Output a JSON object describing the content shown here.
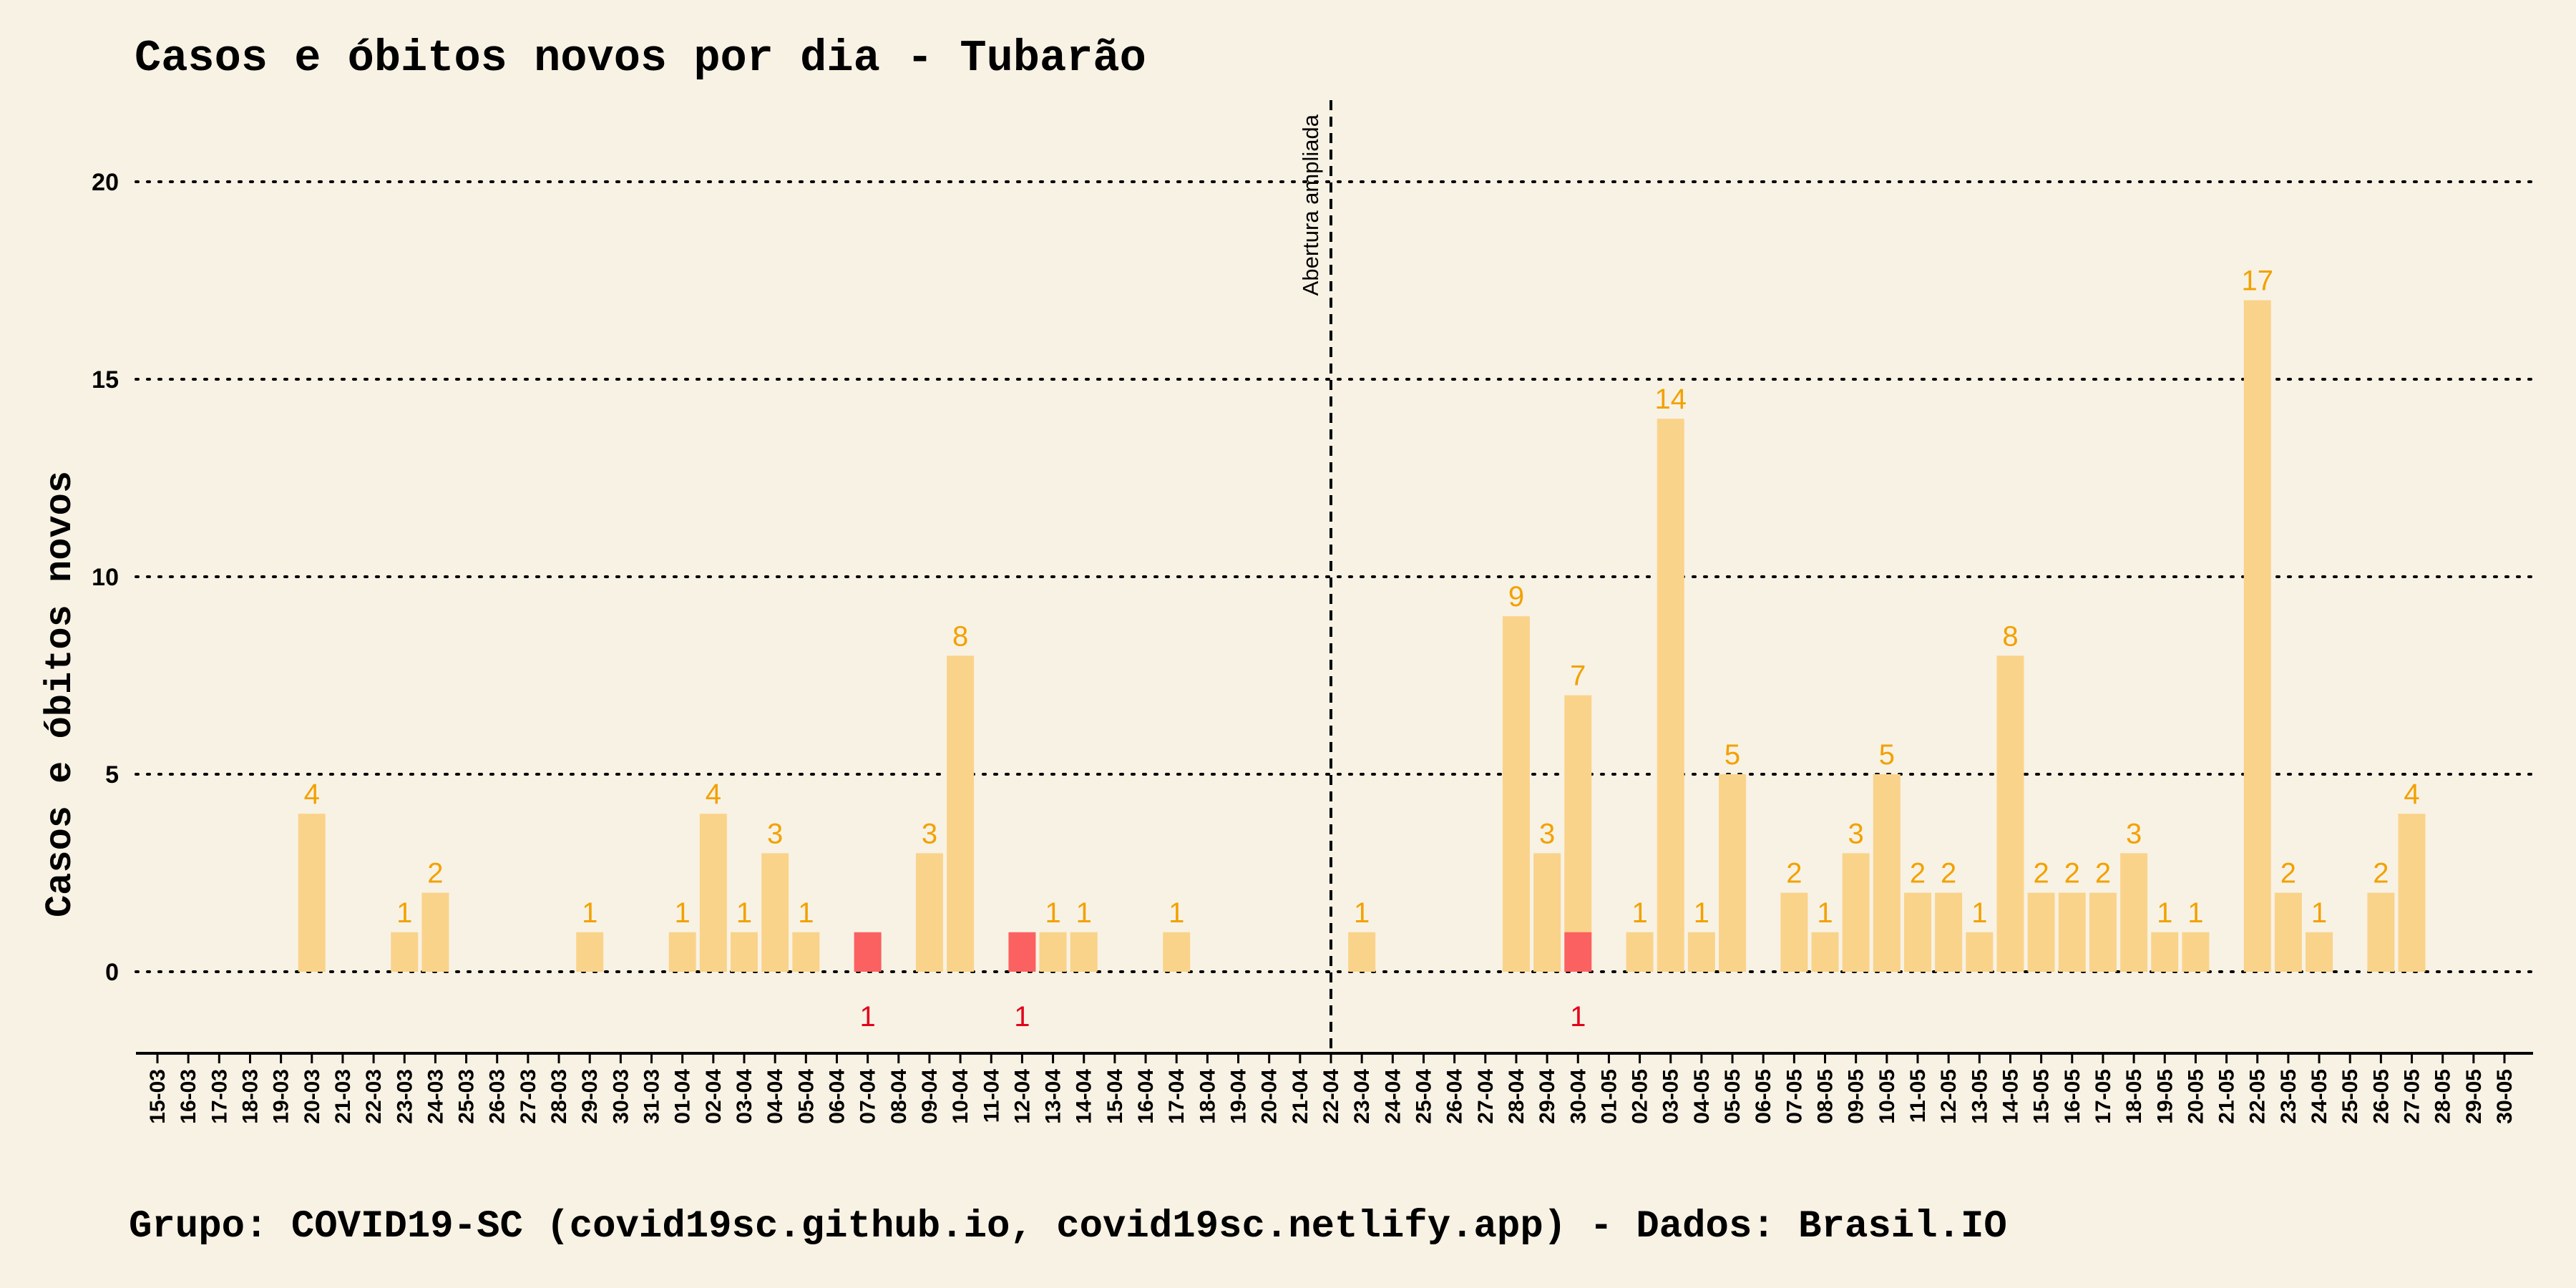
{
  "chart_data": {
    "type": "bar",
    "title": "Casos e óbitos novos por dia -  Tubarão",
    "ylabel": "Casos e óbitos novos",
    "xlabel": "",
    "ylim": [
      -2,
      22
    ],
    "yticks": [
      0,
      5,
      10,
      15,
      20
    ],
    "grid": "horizontal dotted",
    "categories": [
      "15-03",
      "16-03",
      "17-03",
      "18-03",
      "19-03",
      "20-03",
      "21-03",
      "22-03",
      "23-03",
      "24-03",
      "25-03",
      "26-03",
      "27-03",
      "28-03",
      "29-03",
      "30-03",
      "31-03",
      "01-04",
      "02-04",
      "03-04",
      "04-04",
      "05-04",
      "06-04",
      "07-04",
      "08-04",
      "09-04",
      "10-04",
      "11-04",
      "12-04",
      "13-04",
      "14-04",
      "15-04",
      "16-04",
      "17-04",
      "18-04",
      "19-04",
      "20-04",
      "21-04",
      "22-04",
      "23-04",
      "24-04",
      "25-04",
      "26-04",
      "27-04",
      "28-04",
      "29-04",
      "30-04",
      "01-05",
      "02-05",
      "03-05",
      "04-05",
      "05-05",
      "06-05",
      "07-05",
      "08-05",
      "09-05",
      "10-05",
      "11-05",
      "12-05",
      "13-05",
      "14-05",
      "15-05",
      "16-05",
      "17-05",
      "18-05",
      "19-05",
      "20-05",
      "21-05",
      "22-05",
      "23-05",
      "24-05",
      "25-05",
      "26-05",
      "27-05",
      "28-05",
      "29-05",
      "30-05"
    ],
    "series": [
      {
        "name": "Casos novos",
        "color": "#fad38a",
        "label_color": "#f2a100",
        "values": [
          0,
          0,
          0,
          0,
          0,
          4,
          0,
          0,
          1,
          2,
          0,
          0,
          0,
          0,
          1,
          0,
          0,
          1,
          4,
          1,
          3,
          1,
          0,
          0,
          0,
          3,
          8,
          0,
          0,
          1,
          1,
          0,
          0,
          1,
          0,
          0,
          0,
          0,
          0,
          1,
          0,
          0,
          0,
          0,
          9,
          3,
          7,
          0,
          1,
          14,
          1,
          5,
          0,
          2,
          1,
          3,
          5,
          2,
          2,
          1,
          8,
          2,
          2,
          2,
          3,
          1,
          1,
          0,
          17,
          2,
          1,
          0,
          2,
          4,
          0,
          0,
          0
        ]
      },
      {
        "name": "Óbitos novos",
        "color": "#fb6161",
        "label_color": "#e3001b",
        "values": [
          0,
          0,
          0,
          0,
          0,
          0,
          0,
          0,
          0,
          0,
          0,
          0,
          0,
          0,
          0,
          0,
          0,
          0,
          0,
          0,
          0,
          0,
          0,
          1,
          0,
          0,
          0,
          0,
          1,
          0,
          0,
          0,
          0,
          0,
          0,
          0,
          0,
          0,
          0,
          0,
          0,
          0,
          0,
          0,
          0,
          0,
          1,
          0,
          0,
          0,
          0,
          0,
          0,
          0,
          0,
          0,
          0,
          0,
          0,
          0,
          0,
          0,
          0,
          0,
          0,
          0,
          0,
          0,
          0,
          0,
          0,
          0,
          0,
          0,
          0,
          0,
          0
        ]
      }
    ],
    "annotations": [
      {
        "text": "Abertura ampliada",
        "at_category": "22-04",
        "style": "dashed vertical line"
      }
    ]
  },
  "footer": {
    "text": "Grupo: COVID19-SC (covid19sc.github.io, covid19sc.netlify.app)   -  Dados: Brasil.IO"
  }
}
